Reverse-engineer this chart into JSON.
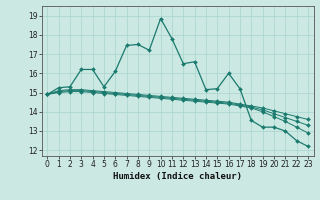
{
  "xlabel": "Humidex (Indice chaleur)",
  "x_ticks": [
    0,
    1,
    2,
    3,
    4,
    5,
    6,
    7,
    8,
    9,
    10,
    11,
    12,
    13,
    14,
    15,
    16,
    17,
    18,
    19,
    20,
    21,
    22,
    23
  ],
  "y_ticks": [
    12,
    13,
    14,
    15,
    16,
    17,
    18,
    19
  ],
  "xlim": [
    -0.5,
    23.5
  ],
  "ylim": [
    11.7,
    19.5
  ],
  "bg_color": "#cbe8e2",
  "line_color": "#1a7a6e",
  "grid_color": "#a8d5cc",
  "line1_y": [
    14.9,
    15.25,
    15.3,
    16.2,
    16.2,
    15.3,
    16.1,
    17.45,
    17.5,
    17.2,
    18.85,
    17.8,
    16.5,
    16.6,
    15.15,
    15.2,
    16.0,
    15.2,
    13.55,
    13.2,
    13.2,
    13.0,
    12.5,
    12.2
  ],
  "line2_y": [
    14.9,
    15.1,
    15.15,
    15.15,
    15.1,
    15.05,
    15.0,
    14.95,
    14.9,
    14.85,
    14.8,
    14.75,
    14.7,
    14.65,
    14.6,
    14.55,
    14.5,
    14.4,
    14.3,
    14.2,
    14.05,
    13.9,
    13.75,
    13.6
  ],
  "line3_y": [
    14.9,
    15.05,
    15.1,
    15.1,
    15.05,
    15.0,
    14.95,
    14.9,
    14.85,
    14.8,
    14.75,
    14.7,
    14.65,
    14.6,
    14.55,
    14.5,
    14.45,
    14.35,
    14.25,
    14.1,
    13.9,
    13.7,
    13.5,
    13.3
  ],
  "line4_y": [
    14.9,
    15.0,
    15.05,
    15.05,
    15.0,
    14.95,
    14.9,
    14.85,
    14.8,
    14.75,
    14.7,
    14.65,
    14.6,
    14.55,
    14.5,
    14.45,
    14.4,
    14.3,
    14.2,
    14.0,
    13.75,
    13.5,
    13.2,
    12.9
  ],
  "tick_fontsize": 5.5,
  "xlabel_fontsize": 6.5,
  "marker_size": 2.0
}
